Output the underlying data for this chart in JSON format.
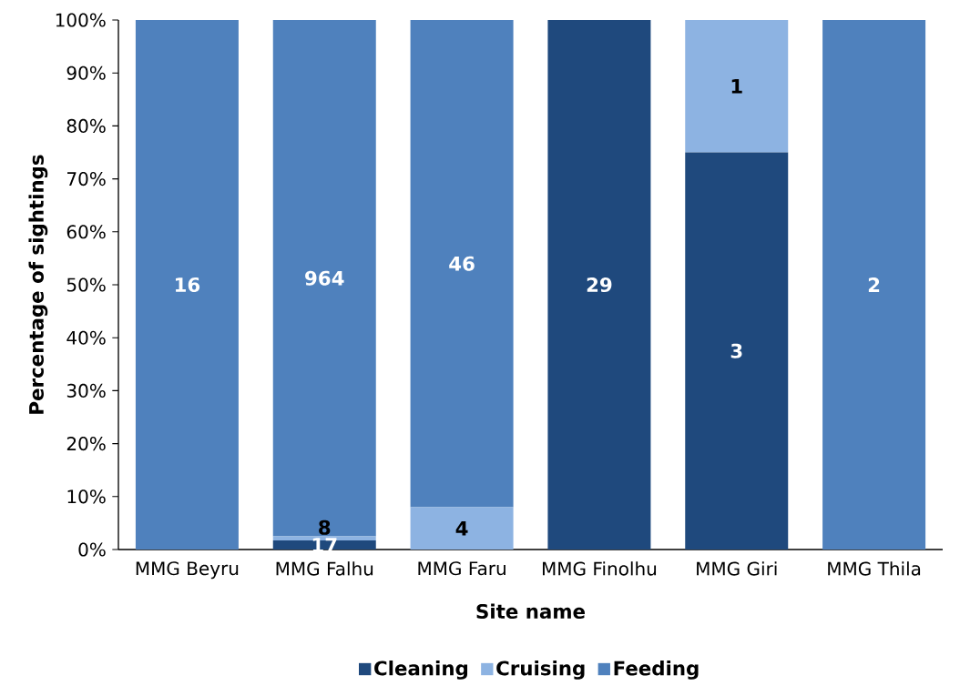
{
  "chart_data": {
    "type": "bar",
    "stacked": true,
    "xlabel": "Site name",
    "ylabel": "Percentage of sightings",
    "categories": [
      "MMG Beyru",
      "MMG Falhu",
      "MMG Faru",
      "MMG Finolhu",
      "MMG Giri",
      "MMG Thila"
    ],
    "ylim": [
      0,
      100
    ],
    "yticks": [
      {
        "value": 0,
        "label": "0%"
      },
      {
        "value": 10,
        "label": "10%"
      },
      {
        "value": 20,
        "label": "20%"
      },
      {
        "value": 30,
        "label": "30%"
      },
      {
        "value": 40,
        "label": "40%"
      },
      {
        "value": 50,
        "label": "50%"
      },
      {
        "value": 60,
        "label": "60%"
      },
      {
        "value": 70,
        "label": "70%"
      },
      {
        "value": 80,
        "label": "80%"
      },
      {
        "value": 90,
        "label": "90%"
      },
      {
        "value": 100,
        "label": "100%"
      }
    ],
    "series": [
      {
        "name": "Cleaning",
        "color": "#1f497d",
        "values": [
          null,
          1.7,
          null,
          100,
          75,
          null
        ]
      },
      {
        "name": "Cruising",
        "color": "#8db3e2",
        "values": [
          null,
          0.8,
          8,
          null,
          25,
          null
        ]
      },
      {
        "name": "Feeding",
        "color": "#4f81bd",
        "values": [
          100,
          97.5,
          92,
          null,
          null,
          100
        ]
      }
    ],
    "annotations": [
      "17",
      "29",
      "3",
      "8",
      "4",
      "1",
      "16",
      "964",
      "46",
      "2"
    ],
    "legend": "bottom"
  }
}
